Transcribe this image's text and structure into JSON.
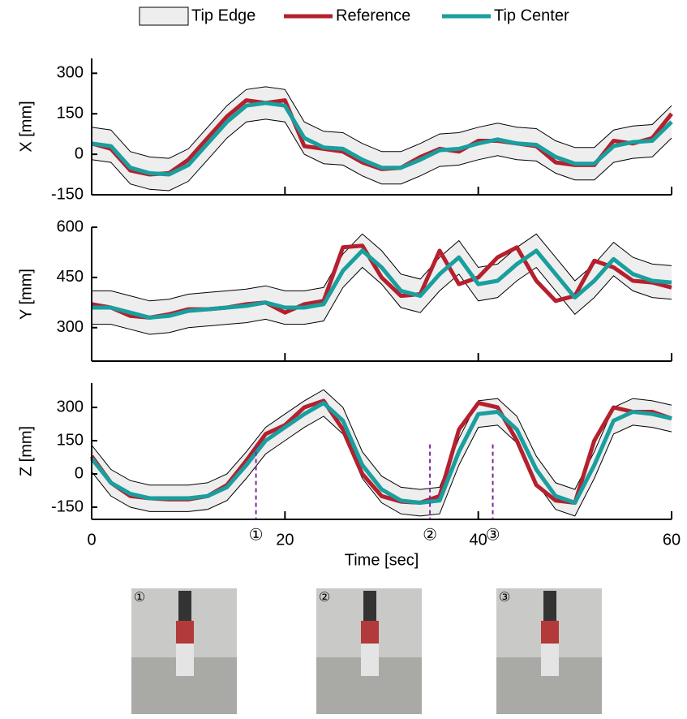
{
  "chart_data": [
    {
      "type": "line",
      "ylabel": "X [mm]",
      "x": [
        0,
        2,
        4,
        6,
        8,
        10,
        12,
        14,
        16,
        18,
        20,
        22,
        24,
        26,
        28,
        30,
        32,
        34,
        36,
        38,
        40,
        42,
        44,
        46,
        48,
        50,
        52,
        54,
        56,
        58,
        60
      ],
      "xlim": [
        0,
        60
      ],
      "xticks": [
        0,
        20,
        40,
        60
      ],
      "ylim": [
        -150,
        355
      ],
      "yticks": [
        -150,
        0,
        150,
        300
      ],
      "series": [
        {
          "name": "Tip Edge",
          "color": "#eeeeee",
          "lower": [
            -20,
            -30,
            -110,
            -130,
            -135,
            -100,
            -20,
            60,
            120,
            130,
            120,
            0,
            -35,
            -40,
            -80,
            -110,
            -110,
            -80,
            -45,
            -40,
            -20,
            -5,
            -20,
            -25,
            -70,
            -95,
            -95,
            -30,
            -15,
            -10,
            60
          ],
          "upper": [
            100,
            90,
            10,
            -10,
            -15,
            20,
            100,
            180,
            240,
            250,
            240,
            120,
            85,
            80,
            40,
            10,
            10,
            40,
            75,
            80,
            100,
            115,
            100,
            95,
            50,
            25,
            25,
            90,
            105,
            110,
            180
          ]
        },
        {
          "name": "Reference",
          "color": "#b5202e",
          "values": [
            40,
            20,
            -60,
            -75,
            -70,
            -20,
            60,
            140,
            200,
            190,
            200,
            30,
            20,
            10,
            -30,
            -55,
            -50,
            -10,
            20,
            10,
            50,
            50,
            40,
            30,
            -30,
            -40,
            -40,
            50,
            40,
            60,
            150
          ]
        },
        {
          "name": "Tip Center",
          "color": "#1a9e9e",
          "values": [
            40,
            30,
            -50,
            -70,
            -75,
            -40,
            40,
            120,
            180,
            190,
            180,
            60,
            25,
            20,
            -20,
            -50,
            -50,
            -20,
            15,
            20,
            40,
            55,
            40,
            35,
            -10,
            -35,
            -35,
            30,
            45,
            50,
            120
          ]
        }
      ]
    },
    {
      "type": "line",
      "ylabel": "Y [mm]",
      "x": [
        0,
        2,
        4,
        6,
        8,
        10,
        12,
        14,
        16,
        18,
        20,
        22,
        24,
        26,
        28,
        30,
        32,
        34,
        36,
        38,
        40,
        42,
        44,
        46,
        48,
        50,
        52,
        54,
        56,
        58,
        60
      ],
      "xlim": [
        0,
        60
      ],
      "xticks": [
        0,
        20,
        40,
        60
      ],
      "ylim": [
        200,
        600
      ],
      "yticks": [
        300,
        450,
        600
      ],
      "series": [
        {
          "name": "Tip Edge",
          "color": "#eeeeee",
          "lower": [
            310,
            310,
            295,
            280,
            285,
            300,
            305,
            310,
            315,
            325,
            310,
            310,
            320,
            420,
            480,
            430,
            360,
            345,
            410,
            460,
            380,
            390,
            440,
            480,
            410,
            340,
            390,
            455,
            410,
            390,
            385
          ],
          "upper": [
            410,
            410,
            395,
            380,
            385,
            400,
            405,
            410,
            415,
            425,
            410,
            410,
            420,
            520,
            580,
            530,
            460,
            445,
            510,
            560,
            480,
            490,
            540,
            580,
            510,
            440,
            490,
            555,
            510,
            490,
            485
          ]
        },
        {
          "name": "Reference",
          "color": "#b5202e",
          "values": [
            370,
            360,
            335,
            330,
            340,
            355,
            355,
            360,
            370,
            375,
            345,
            370,
            380,
            540,
            545,
            450,
            395,
            400,
            530,
            430,
            450,
            510,
            540,
            440,
            380,
            395,
            500,
            480,
            440,
            435,
            420
          ]
        },
        {
          "name": "Tip Center",
          "color": "#1a9e9e",
          "values": [
            360,
            360,
            345,
            330,
            335,
            350,
            355,
            360,
            365,
            375,
            360,
            360,
            370,
            470,
            530,
            480,
            410,
            395,
            460,
            510,
            430,
            440,
            490,
            530,
            460,
            390,
            440,
            505,
            460,
            440,
            435
          ]
        }
      ]
    },
    {
      "type": "line",
      "ylabel": "Z [mm]",
      "xlabel": "Time [sec]",
      "x": [
        0,
        2,
        4,
        6,
        8,
        10,
        12,
        14,
        16,
        18,
        20,
        22,
        24,
        26,
        28,
        30,
        32,
        34,
        36,
        38,
        40,
        42,
        44,
        46,
        48,
        50,
        52,
        54,
        56,
        58,
        60
      ],
      "xlim": [
        0,
        60
      ],
      "xticks": [
        0,
        20,
        40,
        60
      ],
      "ylim": [
        -205,
        410
      ],
      "yticks": [
        -150,
        0,
        150,
        300
      ],
      "series": [
        {
          "name": "Tip Edge",
          "color": "#eeeeee",
          "lower": [
            10,
            -100,
            -150,
            -170,
            -170,
            -170,
            -160,
            -120,
            -20,
            90,
            150,
            210,
            260,
            180,
            -20,
            -130,
            -180,
            -190,
            -180,
            40,
            210,
            220,
            140,
            -40,
            -160,
            -190,
            -20,
            180,
            220,
            210,
            190
          ],
          "upper": [
            130,
            20,
            -30,
            -50,
            -50,
            -50,
            -40,
            0,
            100,
            210,
            270,
            330,
            380,
            300,
            100,
            -10,
            -60,
            -70,
            -60,
            160,
            330,
            340,
            260,
            80,
            -40,
            -70,
            100,
            300,
            340,
            330,
            310
          ]
        },
        {
          "name": "Reference",
          "color": "#b5202e",
          "values": [
            80,
            -40,
            -100,
            -110,
            -115,
            -115,
            -100,
            -50,
            60,
            180,
            220,
            300,
            330,
            200,
            0,
            -100,
            -125,
            -130,
            -100,
            200,
            320,
            300,
            150,
            -50,
            -120,
            -130,
            150,
            300,
            280,
            280,
            250
          ]
        },
        {
          "name": "Tip Center",
          "color": "#1a9e9e",
          "values": [
            70,
            -40,
            -90,
            -110,
            -110,
            -110,
            -100,
            -60,
            40,
            150,
            210,
            270,
            320,
            240,
            40,
            -70,
            -120,
            -130,
            -120,
            100,
            270,
            280,
            200,
            20,
            -100,
            -130,
            40,
            240,
            280,
            270,
            250
          ]
        }
      ],
      "markers": [
        {
          "x": 17,
          "label": "①"
        },
        {
          "x": 35,
          "label": "②"
        },
        {
          "x": 41.5,
          "label": "③"
        }
      ]
    }
  ],
  "photos": [
    {
      "label": "①"
    },
    {
      "label": "②"
    },
    {
      "label": "③"
    }
  ]
}
